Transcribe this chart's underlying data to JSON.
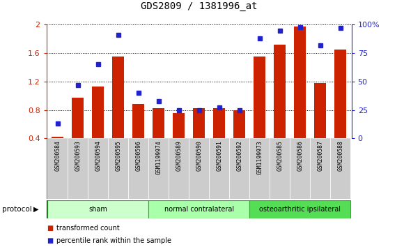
{
  "title": "GDS2809 / 1381996_at",
  "categories": [
    "GSM200584",
    "GSM200593",
    "GSM200594",
    "GSM200595",
    "GSM200596",
    "GSM1199974",
    "GSM200589",
    "GSM200590",
    "GSM200591",
    "GSM200592",
    "GSM1199973",
    "GSM200585",
    "GSM200586",
    "GSM200587",
    "GSM200588"
  ],
  "red_values": [
    0.42,
    0.97,
    1.13,
    1.55,
    0.88,
    0.82,
    0.76,
    0.82,
    0.82,
    0.8,
    1.55,
    1.72,
    1.97,
    1.18,
    1.65
  ],
  "blue_values": [
    13,
    47,
    65,
    91,
    40,
    33,
    25,
    25,
    27,
    25,
    88,
    95,
    98,
    82,
    97
  ],
  "ylim_left": [
    0.4,
    2.0
  ],
  "ylim_right": [
    0,
    100
  ],
  "yticks_left": [
    0.4,
    0.8,
    1.2,
    1.6,
    2.0
  ],
  "ytick_left_labels": [
    "0.4",
    "0.8",
    "1.2",
    "1.6",
    "2"
  ],
  "yticks_right": [
    0,
    25,
    50,
    75,
    100
  ],
  "ytick_right_labels": [
    "0",
    "25",
    "50",
    "75",
    "100%"
  ],
  "groups": [
    {
      "label": "sham",
      "start": 0,
      "end": 4,
      "color": "#ccffcc"
    },
    {
      "label": "normal contralateral",
      "start": 5,
      "end": 9,
      "color": "#aaffaa"
    },
    {
      "label": "osteoarthritic ipsilateral",
      "start": 10,
      "end": 14,
      "color": "#55dd55"
    }
  ],
  "bar_color": "#cc2200",
  "dot_color": "#2222cc",
  "title_fontsize": 10,
  "left_tick_color": "#cc2200",
  "right_tick_color": "#2222cc",
  "sample_bg_color": "#cccccc",
  "sample_border_color": "#aaaaaa",
  "protocol_label": "protocol",
  "legend": [
    {
      "color": "#cc2200",
      "marker": "s",
      "label": "transformed count"
    },
    {
      "color": "#2222cc",
      "marker": "s",
      "label": "percentile rank within the sample"
    }
  ]
}
